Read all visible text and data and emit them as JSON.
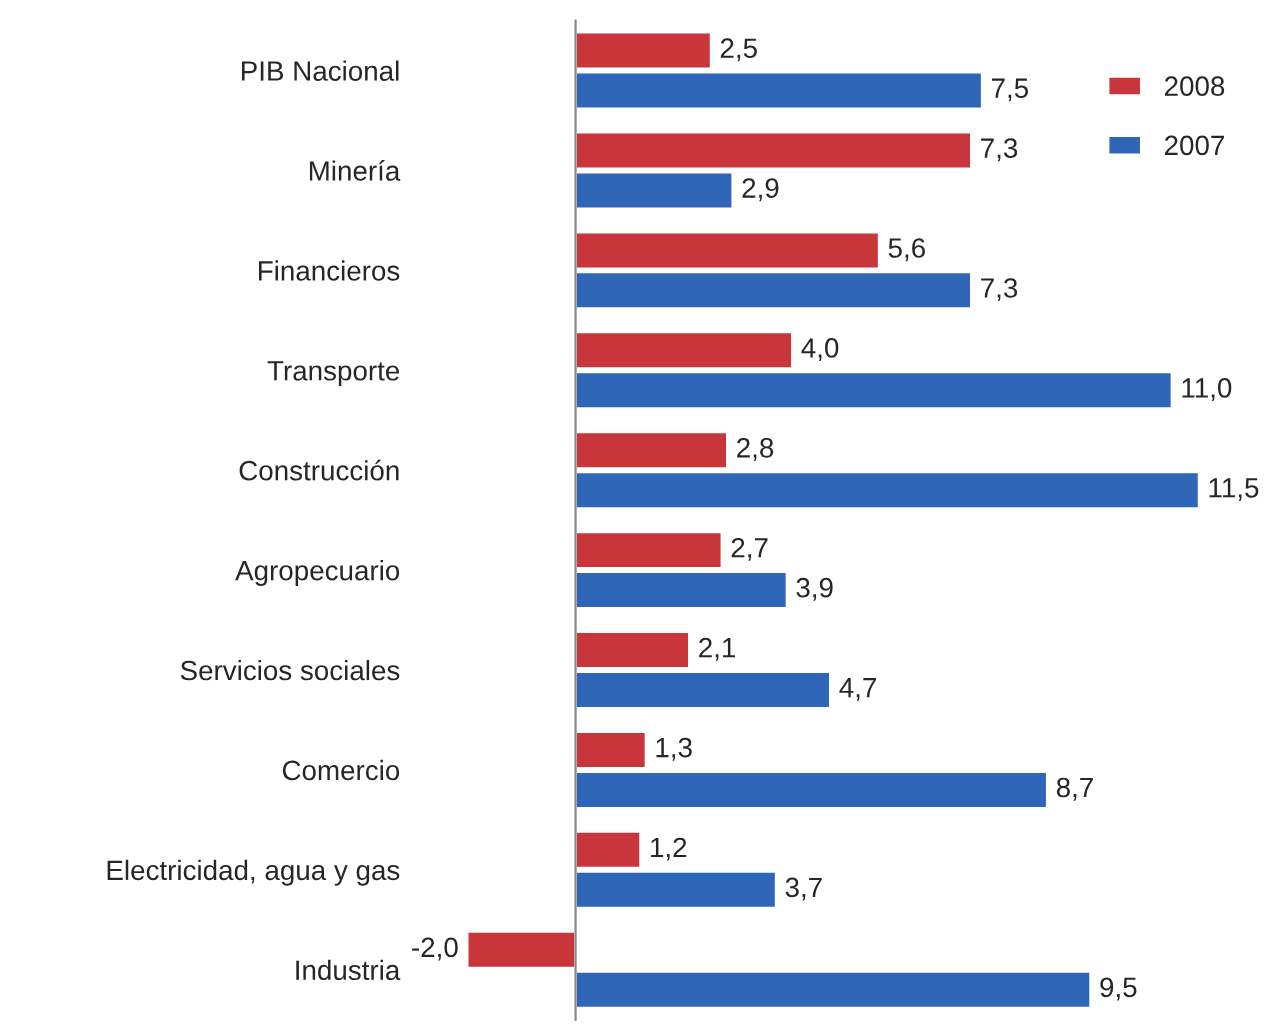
{
  "chart_data": {
    "type": "bar",
    "orientation": "horizontal",
    "categories": [
      "PIB Nacional",
      "Minería",
      "Financieros",
      "Transporte",
      "Construcción",
      "Agropecuario",
      "Servicios sociales",
      "Comercio",
      "Electricidad, agua y gas",
      "Industria"
    ],
    "series": [
      {
        "name": "2008",
        "color": "#c8353b",
        "values": [
          2.5,
          7.3,
          5.6,
          4.0,
          2.8,
          2.7,
          2.1,
          1.3,
          1.2,
          -2.0
        ],
        "value_labels": [
          "2,5",
          "7,3",
          "5,6",
          "4,0",
          "2,8",
          "2,7",
          "2,1",
          "1,3",
          "1,2",
          "-2,0"
        ]
      },
      {
        "name": "2007",
        "color": "#2f66b8",
        "values": [
          7.5,
          2.9,
          7.3,
          11.0,
          11.5,
          3.9,
          4.7,
          8.7,
          3.7,
          9.5
        ],
        "value_labels": [
          "7,5",
          "2,9",
          "7,3",
          "11,0",
          "11,5",
          "3,9",
          "4,7",
          "8,7",
          "3,7",
          "9,5"
        ]
      }
    ],
    "legend": "top right",
    "grid": false,
    "tick_labels": "y"
  }
}
